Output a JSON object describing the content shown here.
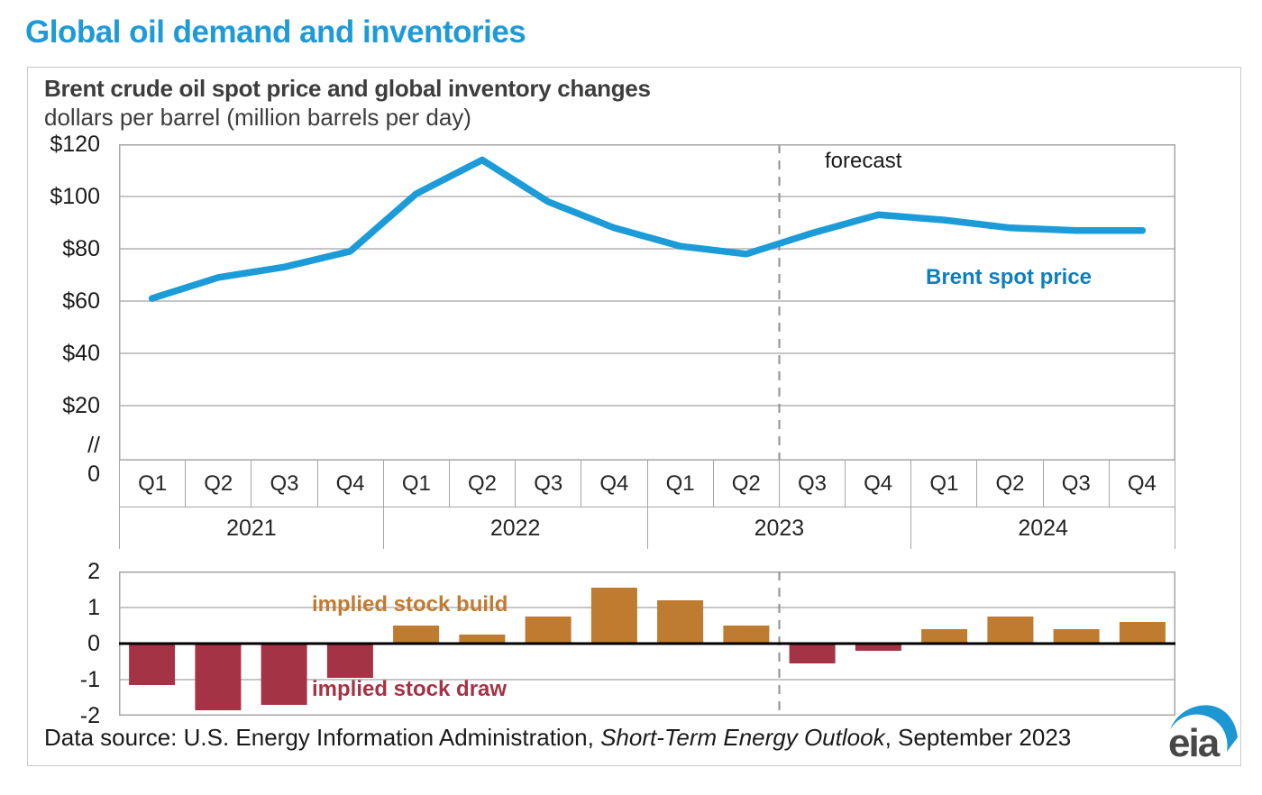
{
  "page": {
    "title": "Global oil demand and inventories"
  },
  "figure": {
    "title": "Brent crude oil spot price and global inventory changes",
    "subtitle": "dollars per barrel (million barrels per day)",
    "forecast_label": "forecast",
    "footer": {
      "prefix": "Data source: U.S. Energy Information Administration, ",
      "publication": "Short-Term Energy Outlook",
      "suffix": ", September 2023"
    },
    "logo_text": "eia"
  },
  "colors": {
    "page_title_blue": "#1e9ad7",
    "line_blue": "#1b9cd8",
    "brent_label_blue": "#0f7fbc",
    "bar_positive": "#bf7b30",
    "bar_negative": "#a43345",
    "grid": "#b3b3b3",
    "plot_border": "#a6a6a6",
    "dash_line": "#8f8f8f",
    "zero_line": "#000000",
    "logo_gray": "#474747",
    "logo_blue": "#1d96d4"
  },
  "axis": {
    "years": [
      "2021",
      "2022",
      "2023",
      "2024"
    ],
    "quarters": [
      "Q1",
      "Q2",
      "Q3",
      "Q4"
    ],
    "axis_break_label": "//",
    "zero_label": "0"
  },
  "chart_data": [
    {
      "type": "line",
      "title": "Brent crude oil spot price and global inventory changes",
      "ylabel": "dollars per barrel",
      "legend_annotation": "Brent spot price",
      "forecast_annotation": "forecast",
      "forecast_start_index": 10,
      "x": [
        "2021 Q1",
        "2021 Q2",
        "2021 Q3",
        "2021 Q4",
        "2022 Q1",
        "2022 Q2",
        "2022 Q3",
        "2022 Q4",
        "2023 Q1",
        "2023 Q2",
        "2023 Q3",
        "2023 Q4",
        "2024 Q1",
        "2024 Q2",
        "2024 Q3",
        "2024 Q4"
      ],
      "series": [
        {
          "name": "Brent spot price",
          "values": [
            61,
            69,
            73,
            79,
            101,
            114,
            98,
            88,
            81,
            78,
            86,
            93,
            91,
            88,
            87,
            87
          ]
        }
      ],
      "yticks": [
        {
          "label": "$120",
          "value": 120
        },
        {
          "label": "$100",
          "value": 100
        },
        {
          "label": "$80",
          "value": 80
        },
        {
          "label": "$60",
          "value": 60
        },
        {
          "label": "$40",
          "value": 40
        },
        {
          "label": "$20",
          "value": 20
        }
      ],
      "ylim": [
        0,
        120
      ],
      "axis_break": true,
      "grid": true
    },
    {
      "type": "bar",
      "ylabel": "million barrels per day",
      "positive_label": "implied stock build",
      "negative_label": "implied stock draw",
      "forecast_start_index": 10,
      "x": [
        "2021 Q1",
        "2021 Q2",
        "2021 Q3",
        "2021 Q4",
        "2022 Q1",
        "2022 Q2",
        "2022 Q3",
        "2022 Q4",
        "2023 Q1",
        "2023 Q2",
        "2023 Q3",
        "2023 Q4",
        "2024 Q1",
        "2024 Q2",
        "2024 Q3",
        "2024 Q4"
      ],
      "series": [
        {
          "name": "implied stock change",
          "values": [
            -1.15,
            -1.85,
            -1.7,
            -0.95,
            0.5,
            0.25,
            0.75,
            1.55,
            1.2,
            0.5,
            -0.55,
            -0.2,
            0.4,
            0.75,
            0.4,
            0.6
          ]
        }
      ],
      "yticks": [
        {
          "label": "2",
          "value": 2
        },
        {
          "label": "1",
          "value": 1
        },
        {
          "label": "0",
          "value": 0
        },
        {
          "label": "-1",
          "value": -1
        },
        {
          "label": "-2",
          "value": -2
        }
      ],
      "ylim": [
        -2,
        2
      ],
      "grid": true
    }
  ]
}
